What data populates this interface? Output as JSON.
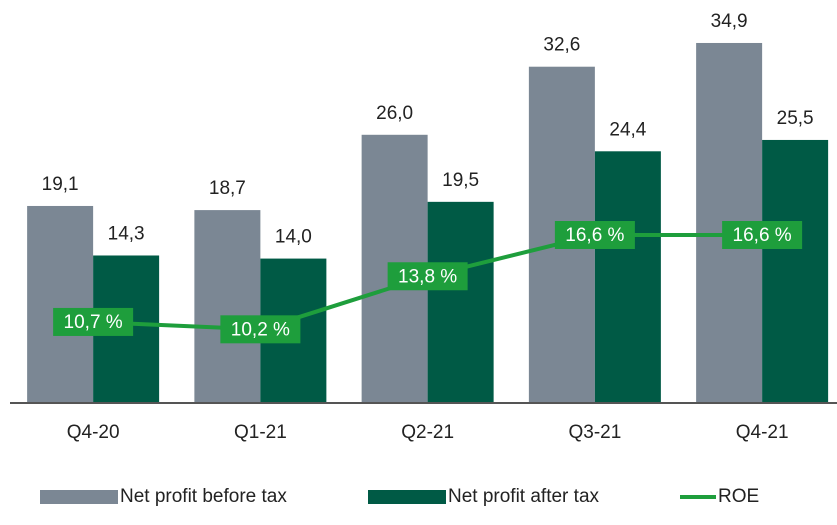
{
  "chart_data": {
    "type": "bar",
    "categories": [
      "Q4-20",
      "Q1-21",
      "Q2-21",
      "Q3-21",
      "Q4-21"
    ],
    "series": [
      {
        "name": "Net profit before tax",
        "color": "#7b8794",
        "values": [
          19.1,
          18.7,
          26.0,
          32.6,
          34.9
        ],
        "value_labels": [
          "19,1",
          "18,7",
          "26,0",
          "32,6",
          "34,9"
        ]
      },
      {
        "name": "Net profit after tax",
        "color": "#005a45",
        "values": [
          14.3,
          14.0,
          19.5,
          24.4,
          25.5
        ],
        "value_labels": [
          "14,3",
          "14,0",
          "19,5",
          "24,4",
          "25,5"
        ]
      },
      {
        "name": "ROE",
        "type": "line",
        "axis": "y2",
        "color": "#1e9e3c",
        "values": [
          10.7,
          10.2,
          13.8,
          16.6,
          16.6
        ],
        "value_labels": [
          "10,7 %",
          "10,2 %",
          "13,8 %",
          "16,6 %",
          "16,6 %"
        ]
      }
    ],
    "ylim": [
      0,
      38
    ],
    "y2lim": [
      5.2,
      31.8
    ],
    "grid": false,
    "legend": "bottom"
  }
}
